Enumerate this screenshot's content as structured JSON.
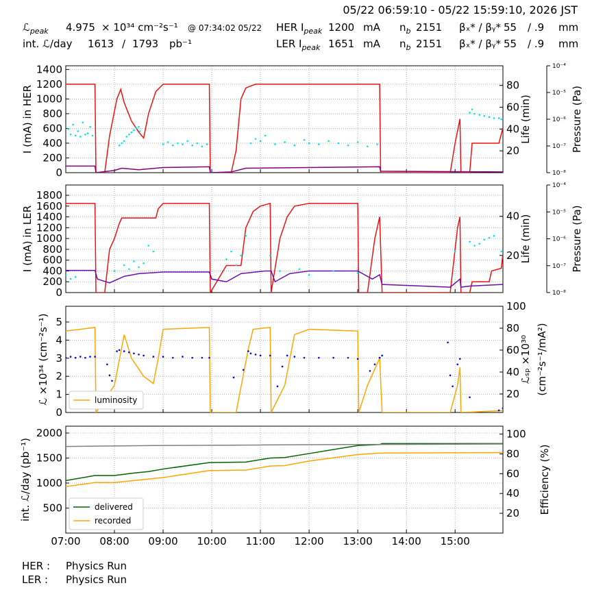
{
  "header": {
    "date_range": "05/22 06:59:10 - 05/22 15:59:10, 2026 JST",
    "row1": [
      "ℒ",
      "peak",
      "4.975",
      "× 10³⁴ cm⁻²s⁻¹",
      "@ 07:34:02 05/22",
      "HER I",
      "peak",
      "1200",
      "mA",
      "n",
      "b",
      "2151",
      "βₓ* / βᵧ*",
      "55",
      "/ .9",
      "mm"
    ],
    "row2": [
      "int. ℒ/day",
      "1613",
      "/",
      "1793",
      "pb⁻¹",
      "LER I",
      "peak",
      "1651",
      "mA",
      "n",
      "b",
      "2151",
      "βₓ* / βᵧ*",
      "55",
      "/ .9",
      "mm"
    ]
  },
  "footer": {
    "rows": [
      [
        "HER :",
        "Physics Run"
      ],
      [
        "LER :",
        "Physics Run"
      ]
    ]
  },
  "chart_data": [
    {
      "type": "line",
      "ylabel": "I (mA) in HER",
      "y2label": "Life (min)",
      "y3label": "Pressure (Pa)",
      "xlim": [
        7,
        15.983
      ],
      "xticks": [
        7,
        8,
        9,
        10,
        11,
        12,
        13,
        14,
        15
      ],
      "ylim": [
        0,
        1450
      ],
      "yticks": [
        0,
        200,
        400,
        600,
        800,
        1000,
        1200,
        1400
      ],
      "y2lim": [
        0,
        98
      ],
      "y2ticks": [
        20,
        40,
        60,
        80
      ],
      "y3lim": [
        1e-08,
        0.0001
      ],
      "y3scale": "log",
      "y3ticks": [
        {
          "value": 0.0001,
          "label": "10⁻⁴"
        },
        {
          "value": 1e-05,
          "label": "10⁻⁵"
        },
        {
          "value": 1e-06,
          "label": "10⁻⁶"
        },
        {
          "value": 1e-07,
          "label": "10⁻⁷"
        },
        {
          "value": 1e-08,
          "label": "10⁻⁸"
        }
      ],
      "grid": true,
      "series": [
        {
          "kind": "line",
          "color": "#ee1111",
          "x": [
            7.0,
            7.6,
            7.62,
            7.8,
            7.9,
            8.05,
            8.13,
            8.2,
            8.35,
            8.5,
            8.6,
            8.7,
            8.85,
            9.0,
            9.95,
            9.97,
            10.4,
            10.5,
            10.6,
            10.7,
            10.9,
            13.45,
            13.47,
            14.9,
            15.0,
            15.1,
            15.12,
            15.3,
            15.35,
            15.9,
            15.98
          ],
          "values": [
            1200,
            1200,
            0,
            0,
            500,
            1000,
            1130,
            950,
            700,
            550,
            470,
            800,
            1100,
            1200,
            1200,
            0,
            0,
            300,
            1000,
            1150,
            1200,
            1200,
            0,
            0,
            400,
            730,
            0,
            0,
            400,
            400,
            600
          ]
        },
        {
          "kind": "line",
          "color": "#800080",
          "x": [
            7.0,
            7.6,
            7.62,
            8.0,
            8.15,
            8.5,
            9.0,
            9.95,
            9.97,
            10.4,
            10.7,
            13.45,
            13.47,
            15.98
          ],
          "values": [
            90,
            90,
            0,
            30,
            60,
            40,
            70,
            80,
            0,
            10,
            60,
            80,
            20,
            10
          ]
        },
        {
          "kind": "scatter",
          "axis": "y2",
          "color": "#00e5ee",
          "x": [
            7.05,
            7.1,
            7.15,
            7.2,
            7.25,
            7.3,
            7.35,
            7.4,
            7.45,
            7.5,
            7.55,
            8.1,
            8.15,
            8.2,
            8.25,
            8.3,
            8.35,
            8.4,
            8.45,
            8.5,
            8.52,
            9.0,
            9.1,
            9.2,
            9.3,
            9.4,
            9.5,
            9.6,
            9.7,
            9.8,
            9.9,
            10.8,
            10.9,
            11.0,
            11.1,
            11.3,
            11.5,
            11.7,
            11.9,
            12.0,
            12.2,
            12.4,
            12.6,
            12.8,
            13.0,
            13.2,
            13.4,
            15.3,
            15.35,
            15.4,
            15.5,
            15.6,
            15.7,
            15.8,
            15.9,
            15.95
          ],
          "values": [
            40,
            35,
            44,
            34,
            38,
            33,
            46,
            35,
            36,
            42,
            34,
            25,
            27,
            29,
            33,
            35,
            37,
            39,
            41,
            42,
            38,
            26,
            28,
            25,
            27,
            26,
            29,
            25,
            27,
            24,
            26,
            27,
            31,
            29,
            34,
            26,
            28,
            25,
            30,
            27,
            26,
            29,
            27,
            25,
            28,
            24,
            26,
            55,
            58,
            54,
            53,
            52,
            51,
            50,
            50,
            49
          ]
        }
      ]
    },
    {
      "type": "line",
      "ylabel": "I (mA) in LER",
      "y2label": "Life (min)",
      "y3label": "Pressure (Pa)",
      "xlim": [
        7,
        15.983
      ],
      "xticks": [
        7,
        8,
        9,
        10,
        11,
        12,
        13,
        14,
        15
      ],
      "ylim": [
        0,
        1990
      ],
      "yticks": [
        0,
        200,
        400,
        600,
        800,
        1000,
        1200,
        1400,
        1600,
        1800
      ],
      "y2lim": [
        1,
        56
      ],
      "y2ticks": [
        20,
        40
      ],
      "y3lim": [
        1e-08,
        0.0001
      ],
      "y3scale": "log",
      "y3ticks": [
        {
          "value": 0.0001,
          "label": "10⁻⁴"
        },
        {
          "value": 1e-05,
          "label": "10⁻⁵"
        },
        {
          "value": 1e-06,
          "label": "10⁻⁶"
        },
        {
          "value": 1e-07,
          "label": "10⁻⁷"
        },
        {
          "value": 1e-08,
          "label": "10⁻⁸"
        }
      ],
      "grid": true,
      "series": [
        {
          "kind": "line",
          "color": "#ee1111",
          "x": [
            7.0,
            7.6,
            7.62,
            7.8,
            7.9,
            8.0,
            8.1,
            8.15,
            8.85,
            8.9,
            9.0,
            9.95,
            9.97,
            10.3,
            10.6,
            10.7,
            10.85,
            11.0,
            11.2,
            11.22,
            11.4,
            11.55,
            11.7,
            12.0,
            13.0,
            13.02,
            13.2,
            13.35,
            13.45,
            13.5,
            14.9,
            15.05,
            15.1,
            15.12,
            15.3,
            15.35,
            15.7,
            15.75,
            15.95,
            15.98
          ],
          "values": [
            1650,
            1650,
            0,
            0,
            800,
            1000,
            1280,
            1380,
            1380,
            1550,
            1650,
            1650,
            0,
            500,
            500,
            1200,
            1500,
            1600,
            1650,
            0,
            1000,
            1400,
            1600,
            1650,
            1650,
            0,
            0,
            1000,
            1400,
            0,
            0,
            1200,
            1400,
            0,
            0,
            200,
            200,
            400,
            450,
            700
          ]
        },
        {
          "kind": "line",
          "color": "#6a0dad",
          "x": [
            7.0,
            7.6,
            7.65,
            7.9,
            8.2,
            8.5,
            9.0,
            9.95,
            10.0,
            10.3,
            10.6,
            11.1,
            11.22,
            11.3,
            11.6,
            12.0,
            13.0,
            13.3,
            13.45,
            13.5,
            14.9,
            15.1,
            15.12,
            15.3,
            15.98
          ],
          "values": [
            410,
            410,
            250,
            180,
            300,
            350,
            380,
            380,
            250,
            200,
            350,
            400,
            400,
            200,
            350,
            400,
            400,
            250,
            330,
            150,
            100,
            250,
            100,
            120,
            150
          ]
        },
        {
          "kind": "scatter",
          "axis": "y2",
          "color": "#00e5ee",
          "x": [
            7.0,
            7.1,
            7.2,
            8.0,
            8.2,
            8.3,
            8.4,
            8.5,
            8.6,
            8.7,
            8.8,
            10.3,
            10.4,
            10.5,
            10.6,
            10.7,
            11.2,
            11.4,
            11.8,
            12.0,
            12.5,
            13.0,
            15.0,
            15.3,
            15.4,
            15.5,
            15.6,
            15.7,
            15.8,
            15.95
          ],
          "values": [
            10,
            8,
            9,
            12,
            15,
            13,
            17,
            14,
            16,
            25,
            22,
            18,
            22,
            15,
            20,
            30,
            20,
            12,
            13,
            10,
            12,
            11,
            22,
            27,
            25,
            26,
            28,
            29,
            30,
            22
          ]
        }
      ]
    },
    {
      "type": "line",
      "ylabel": "ℒ ×10³⁴ (cm⁻²s⁻¹)",
      "y2label": [
        "ℒₛₚ ×10³⁰",
        "(cm⁻²s⁻¹/mA²)"
      ],
      "xlim": [
        7,
        15.983
      ],
      "xticks": [
        7,
        8,
        9,
        10,
        11,
        12,
        13,
        14,
        15
      ],
      "ylim": [
        0,
        5.87
      ],
      "yticks": [
        0,
        1,
        2,
        3,
        4,
        5
      ],
      "y2lim": [
        3.1,
        100
      ],
      "y2ticks": [
        20,
        40,
        60,
        80,
        100
      ],
      "grid": true,
      "legend": "lower left",
      "series": [
        {
          "kind": "line",
          "name": "luminosity",
          "color": "#ffa500",
          "x": [
            7.0,
            7.6,
            7.62,
            8.0,
            8.2,
            8.35,
            8.6,
            8.8,
            8.9,
            9.0,
            9.95,
            9.97,
            10.5,
            10.75,
            10.85,
            11.2,
            11.22,
            11.5,
            11.7,
            12.0,
            13.0,
            13.02,
            13.2,
            13.45,
            13.5,
            14.9,
            15.05,
            15.1,
            15.12,
            15.98
          ],
          "values": [
            4.5,
            4.7,
            0,
            1.5,
            4.3,
            3,
            2,
            1.6,
            3,
            4.6,
            4.7,
            0,
            0,
            3.5,
            4.6,
            4.7,
            0,
            1.5,
            4.3,
            4.6,
            4.5,
            0,
            1.5,
            3,
            0,
            0,
            1.5,
            2.5,
            0,
            0.1
          ]
        },
        {
          "kind": "scatter",
          "axis": "y2",
          "color": "#0000ee",
          "x": [
            7.0,
            7.1,
            7.2,
            7.3,
            7.4,
            7.5,
            7.6,
            7.85,
            7.9,
            7.95,
            8.05,
            8.1,
            8.2,
            8.3,
            8.4,
            8.5,
            8.6,
            8.8,
            9.0,
            9.2,
            9.4,
            9.6,
            9.8,
            9.95,
            10.45,
            10.65,
            10.75,
            10.8,
            10.9,
            11.0,
            11.2,
            11.35,
            11.45,
            11.55,
            11.7,
            11.9,
            12.2,
            12.5,
            12.8,
            13.0,
            13.25,
            13.35,
            13.45,
            13.5,
            14.85,
            14.9,
            14.95,
            15.05,
            15.1,
            15.3,
            15.9,
            15.98
          ],
          "values": [
            53,
            54,
            53,
            54,
            53,
            54,
            54,
            47,
            37,
            32,
            59,
            60,
            59,
            58,
            57,
            56,
            55,
            54,
            54,
            53,
            54,
            53,
            53,
            53,
            35,
            42,
            59,
            57,
            56,
            55,
            55,
            27,
            45,
            55,
            54,
            53,
            53,
            53,
            53,
            52,
            41,
            47,
            53,
            55,
            67,
            37,
            27,
            47,
            52,
            17,
            5,
            7
          ]
        }
      ]
    },
    {
      "type": "line",
      "ylabel": "int. ℒ/day (pb⁻¹)",
      "y2label": "Efficiency (%)",
      "xlim": [
        7,
        15.983
      ],
      "xticks": [
        {
          "value": 7,
          "label": "07:00"
        },
        {
          "value": 8,
          "label": "08:00"
        },
        {
          "value": 9,
          "label": "09:00"
        },
        {
          "value": 10,
          "label": "10:00"
        },
        {
          "value": 11,
          "label": "11:00"
        },
        {
          "value": 12,
          "label": "12:00"
        },
        {
          "value": 13,
          "label": "13:00"
        },
        {
          "value": 14,
          "label": "14:00"
        },
        {
          "value": 15,
          "label": "15:00"
        }
      ],
      "ylim": [
        0,
        2137
      ],
      "yticks": [
        500,
        1000,
        1500,
        2000
      ],
      "y2lim": [
        0,
        108
      ],
      "y2ticks": [
        20,
        40,
        60,
        80,
        100
      ],
      "grid": true,
      "legend": "lower left",
      "series": [
        {
          "kind": "line",
          "name": "delivered",
          "color": "#006400",
          "x": [
            7.0,
            7.6,
            8.0,
            8.4,
            8.7,
            9.0,
            9.95,
            10.7,
            11.2,
            11.5,
            12.0,
            13.0,
            13.45,
            13.5,
            15.98
          ],
          "values": [
            1050,
            1150,
            1150,
            1200,
            1230,
            1280,
            1410,
            1420,
            1500,
            1510,
            1590,
            1750,
            1770,
            1790,
            1790
          ]
        },
        {
          "kind": "line",
          "name": "recorded",
          "color": "#ffa500",
          "x": [
            7.0,
            7.6,
            8.0,
            9.0,
            9.95,
            10.7,
            11.2,
            11.5,
            12.0,
            13.0,
            13.45,
            15.98
          ],
          "values": [
            930,
            1010,
            1010,
            1110,
            1250,
            1260,
            1340,
            1350,
            1440,
            1570,
            1600,
            1610
          ]
        },
        {
          "kind": "line",
          "axis": "y2",
          "color": "#808080",
          "x": [
            7.0,
            9.0,
            11.0,
            13.0,
            15.98
          ],
          "values": [
            87.5,
            88.5,
            89,
            89.5,
            90
          ]
        }
      ]
    }
  ]
}
